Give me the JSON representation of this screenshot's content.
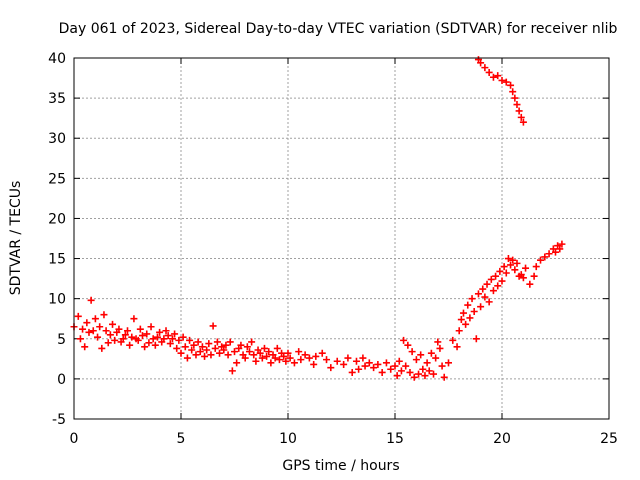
{
  "chart_data": {
    "type": "scatter",
    "title": "Day 061 of 2023, Sidereal Day-to-day VTEC variation (SDTVAR) for receiver nlib",
    "xlabel": "GPS time / hours",
    "ylabel": "SDTVAR / TECUs",
    "xlim": [
      0,
      25
    ],
    "ylim": [
      -5,
      40
    ],
    "xticks": [
      "0",
      "5",
      "10",
      "15",
      "20",
      "25"
    ],
    "yticks": [
      "-5",
      "0",
      "5",
      "10",
      "15",
      "20",
      "25",
      "30",
      "35",
      "40"
    ],
    "grid": true,
    "marker": "plus",
    "color": "#ff0000",
    "series": [
      {
        "name": "SDTVAR",
        "points": [
          [
            0.0,
            6.5
          ],
          [
            0.2,
            7.8
          ],
          [
            0.3,
            5.0
          ],
          [
            0.4,
            6.2
          ],
          [
            0.5,
            4.0
          ],
          [
            0.6,
            7.0
          ],
          [
            0.7,
            5.8
          ],
          [
            0.8,
            9.8
          ],
          [
            0.9,
            6.0
          ],
          [
            1.0,
            7.5
          ],
          [
            1.1,
            5.2
          ],
          [
            1.2,
            6.5
          ],
          [
            1.3,
            3.8
          ],
          [
            1.4,
            8.0
          ],
          [
            1.5,
            6.0
          ],
          [
            1.6,
            4.5
          ],
          [
            1.7,
            5.5
          ],
          [
            1.8,
            6.8
          ],
          [
            1.9,
            4.8
          ],
          [
            2.0,
            5.8
          ],
          [
            2.1,
            6.2
          ],
          [
            2.2,
            4.6
          ],
          [
            2.3,
            5.0
          ],
          [
            2.4,
            5.5
          ],
          [
            2.5,
            6.0
          ],
          [
            2.6,
            4.2
          ],
          [
            2.7,
            5.2
          ],
          [
            2.8,
            7.5
          ],
          [
            2.9,
            5.0
          ],
          [
            3.0,
            4.8
          ],
          [
            3.1,
            6.2
          ],
          [
            3.2,
            5.4
          ],
          [
            3.3,
            4.0
          ],
          [
            3.4,
            5.6
          ],
          [
            3.5,
            4.5
          ],
          [
            3.6,
            6.5
          ],
          [
            3.7,
            5.0
          ],
          [
            3.8,
            4.2
          ],
          [
            3.9,
            5.2
          ],
          [
            4.0,
            5.8
          ],
          [
            4.1,
            4.6
          ],
          [
            4.2,
            5.0
          ],
          [
            4.3,
            6.0
          ],
          [
            4.4,
            5.4
          ],
          [
            4.5,
            4.4
          ],
          [
            4.6,
            5.0
          ],
          [
            4.7,
            5.6
          ],
          [
            4.8,
            3.8
          ],
          [
            4.9,
            4.8
          ],
          [
            5.0,
            3.2
          ],
          [
            5.1,
            5.2
          ],
          [
            5.2,
            4.0
          ],
          [
            5.3,
            2.6
          ],
          [
            5.4,
            4.8
          ],
          [
            5.5,
            3.6
          ],
          [
            5.6,
            4.2
          ],
          [
            5.7,
            3.0
          ],
          [
            5.8,
            4.6
          ],
          [
            5.9,
            3.4
          ],
          [
            6.0,
            4.0
          ],
          [
            6.1,
            2.8
          ],
          [
            6.2,
            3.6
          ],
          [
            6.3,
            4.4
          ],
          [
            6.4,
            3.0
          ],
          [
            6.5,
            6.6
          ],
          [
            6.6,
            3.8
          ],
          [
            6.7,
            4.6
          ],
          [
            6.8,
            3.2
          ],
          [
            6.9,
            4.0
          ],
          [
            7.0,
            3.6
          ],
          [
            7.1,
            4.2
          ],
          [
            7.2,
            3.0
          ],
          [
            7.3,
            4.6
          ],
          [
            7.4,
            1.0
          ],
          [
            7.5,
            3.4
          ],
          [
            7.6,
            2.0
          ],
          [
            7.7,
            3.8
          ],
          [
            7.8,
            4.2
          ],
          [
            7.9,
            3.0
          ],
          [
            8.0,
            2.6
          ],
          [
            8.1,
            4.0
          ],
          [
            8.2,
            3.4
          ],
          [
            8.3,
            4.6
          ],
          [
            8.4,
            3.0
          ],
          [
            8.5,
            2.2
          ],
          [
            8.6,
            3.6
          ],
          [
            8.7,
            3.2
          ],
          [
            8.8,
            2.6
          ],
          [
            8.9,
            3.8
          ],
          [
            9.0,
            2.8
          ],
          [
            9.1,
            3.4
          ],
          [
            9.2,
            2.0
          ],
          [
            9.3,
            3.0
          ],
          [
            9.4,
            2.6
          ],
          [
            9.5,
            3.8
          ],
          [
            9.6,
            2.4
          ],
          [
            9.7,
            3.2
          ],
          [
            9.8,
            2.8
          ],
          [
            9.9,
            2.2
          ],
          [
            10.0,
            3.2
          ],
          [
            10.1,
            2.6
          ],
          [
            10.3,
            2.0
          ],
          [
            10.5,
            3.4
          ],
          [
            10.6,
            2.4
          ],
          [
            10.8,
            3.0
          ],
          [
            11.0,
            2.6
          ],
          [
            11.2,
            1.8
          ],
          [
            11.3,
            2.8
          ],
          [
            11.6,
            3.2
          ],
          [
            11.8,
            2.4
          ],
          [
            12.0,
            1.4
          ],
          [
            12.3,
            2.2
          ],
          [
            12.6,
            1.8
          ],
          [
            12.8,
            2.6
          ],
          [
            13.0,
            0.8
          ],
          [
            13.2,
            2.2
          ],
          [
            13.3,
            1.2
          ],
          [
            13.5,
            2.6
          ],
          [
            13.6,
            1.6
          ],
          [
            13.8,
            2.0
          ],
          [
            14.0,
            1.4
          ],
          [
            14.2,
            1.8
          ],
          [
            14.4,
            0.8
          ],
          [
            14.6,
            2.0
          ],
          [
            14.8,
            1.2
          ],
          [
            15.0,
            1.6
          ],
          [
            15.1,
            0.4
          ],
          [
            15.2,
            2.2
          ],
          [
            15.3,
            1.0
          ],
          [
            15.4,
            4.8
          ],
          [
            15.5,
            1.6
          ],
          [
            15.6,
            4.2
          ],
          [
            15.7,
            0.8
          ],
          [
            15.8,
            3.4
          ],
          [
            15.9,
            0.2
          ],
          [
            16.0,
            2.4
          ],
          [
            16.1,
            0.6
          ],
          [
            16.2,
            3.0
          ],
          [
            16.3,
            1.2
          ],
          [
            16.4,
            0.4
          ],
          [
            16.5,
            2.0
          ],
          [
            16.6,
            1.0
          ],
          [
            16.7,
            3.2
          ],
          [
            16.8,
            0.6
          ],
          [
            16.9,
            2.6
          ],
          [
            17.0,
            4.6
          ],
          [
            17.1,
            3.8
          ],
          [
            17.2,
            1.6
          ],
          [
            17.3,
            0.2
          ],
          [
            17.5,
            2.0
          ],
          [
            17.7,
            4.8
          ],
          [
            17.9,
            4.0
          ],
          [
            18.0,
            6.0
          ],
          [
            18.1,
            7.4
          ],
          [
            18.2,
            8.2
          ],
          [
            18.3,
            6.8
          ],
          [
            18.4,
            9.2
          ],
          [
            18.5,
            7.6
          ],
          [
            18.6,
            10.0
          ],
          [
            18.7,
            8.4
          ],
          [
            18.8,
            5.0
          ],
          [
            18.9,
            10.6
          ],
          [
            19.0,
            9.0
          ],
          [
            19.1,
            11.2
          ],
          [
            19.2,
            10.2
          ],
          [
            19.3,
            11.8
          ],
          [
            19.4,
            9.6
          ],
          [
            19.5,
            12.4
          ],
          [
            19.6,
            11.0
          ],
          [
            19.7,
            12.8
          ],
          [
            19.8,
            11.6
          ],
          [
            19.9,
            13.4
          ],
          [
            20.0,
            12.2
          ],
          [
            20.1,
            14.0
          ],
          [
            20.2,
            13.2
          ],
          [
            20.3,
            15.0
          ],
          [
            20.4,
            14.2
          ],
          [
            20.5,
            14.8
          ],
          [
            20.6,
            13.6
          ],
          [
            20.7,
            14.4
          ],
          [
            20.8,
            12.8
          ],
          [
            20.9,
            13.0
          ],
          [
            21.0,
            12.6
          ],
          [
            21.1,
            13.8
          ],
          [
            21.3,
            11.8
          ],
          [
            21.5,
            12.8
          ],
          [
            21.6,
            14.0
          ],
          [
            21.8,
            14.8
          ],
          [
            22.0,
            15.2
          ],
          [
            22.2,
            15.6
          ],
          [
            22.4,
            16.2
          ],
          [
            22.5,
            15.8
          ],
          [
            22.6,
            16.6
          ],
          [
            22.7,
            16.2
          ],
          [
            22.8,
            16.8
          ],
          [
            18.9,
            39.8
          ],
          [
            19.0,
            39.4
          ],
          [
            19.2,
            38.8
          ],
          [
            19.4,
            38.2
          ],
          [
            19.6,
            37.6
          ],
          [
            19.8,
            37.8
          ],
          [
            20.0,
            37.2
          ],
          [
            20.2,
            37.0
          ],
          [
            20.4,
            36.6
          ],
          [
            20.5,
            35.8
          ],
          [
            20.6,
            35.0
          ],
          [
            20.7,
            34.2
          ],
          [
            20.8,
            33.4
          ],
          [
            20.9,
            32.6
          ],
          [
            21.0,
            32.0
          ]
        ]
      }
    ]
  }
}
